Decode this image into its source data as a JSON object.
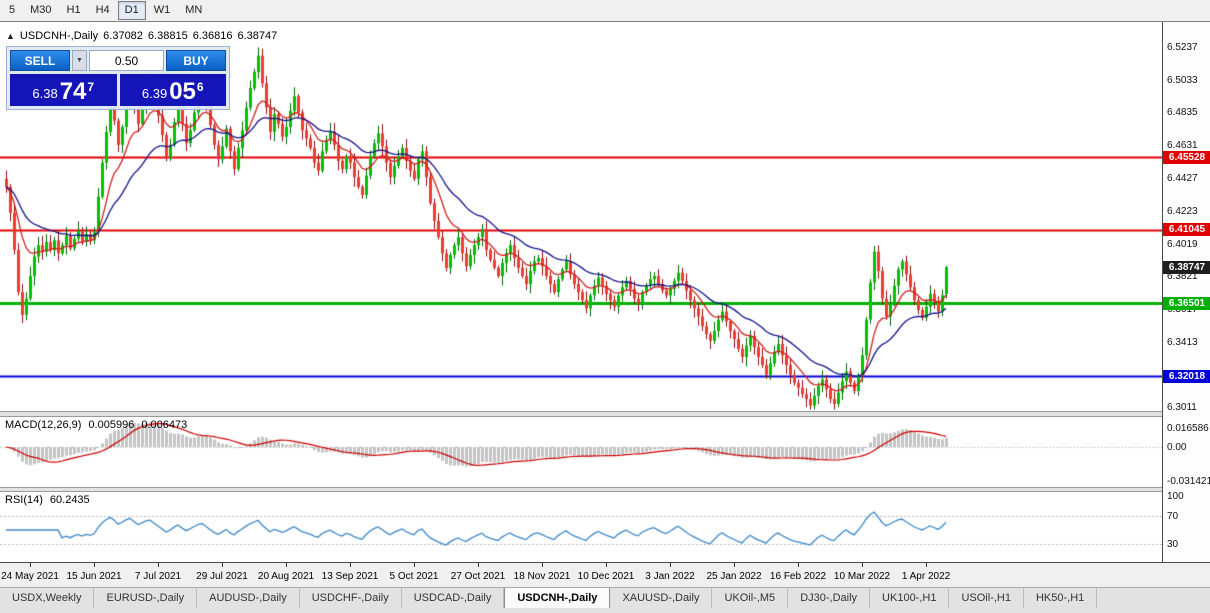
{
  "toolbar": {
    "timeframes": [
      {
        "label": "5",
        "active": false
      },
      {
        "label": "M30",
        "active": false
      },
      {
        "label": "H1",
        "active": false
      },
      {
        "label": "H4",
        "active": false
      },
      {
        "label": "D1",
        "active": true
      },
      {
        "label": "W1",
        "active": false
      },
      {
        "label": "MN",
        "active": false
      }
    ]
  },
  "chart_header": {
    "collapse_icon": "▲",
    "symbol": "USDCNH-,Daily",
    "open": "6.37082",
    "high": "6.38815",
    "low": "6.36816",
    "close": "6.38747"
  },
  "trade_panel": {
    "sell_label": "SELL",
    "buy_label": "BUY",
    "lot": "0.50",
    "dropdown_icon": "▼",
    "bid": {
      "main": "6.38",
      "pips": "74",
      "point": "7"
    },
    "ask": {
      "main": "6.39",
      "pips": "05",
      "point": "6"
    }
  },
  "indicators": {
    "macd": {
      "name": "MACD(12,26,9)",
      "value_main": "0.005996",
      "value_signal": "0.006473"
    },
    "rsi": {
      "name": "RSI(14)",
      "value": "60.2435"
    }
  },
  "colors": {
    "candle_up": "#00c000",
    "candle_up_wick": "#006600",
    "candle_down": "#ef3b32",
    "candle_down_wick": "#8f0e08",
    "ma_fast": "#d02020",
    "ma_slow": "#14148c",
    "macd_hist": "#c4c4c4",
    "macd_signal": "#cc0000",
    "rsi_line": "#3b87c8",
    "trade_button_blue": "#0a5fc4",
    "price_box_blue": "#1414b8"
  },
  "chart_data": {
    "type": "candlestick",
    "symbol": "USDCNH",
    "timeframe": "Daily",
    "ohlc_current": {
      "open": 6.37082,
      "high": 6.38815,
      "low": 6.36816,
      "close": 6.38747
    },
    "bid": 6.38747,
    "ask": 6.39056,
    "y_scale_top": 6.537,
    "y_scale_bottom": 6.2986,
    "y_axis_ticks": [
      "6.5237",
      "6.5033",
      "6.4835",
      "6.4631",
      "6.4427",
      "6.4223",
      "6.4019",
      "6.3821",
      "6.3617",
      "6.3413",
      "6.3209",
      "6.3011"
    ],
    "levels": [
      {
        "price": 6.45528,
        "label": "6.45528",
        "color": "#e00000",
        "line_width": 2,
        "current": false
      },
      {
        "price": 6.41045,
        "label": "6.41045",
        "color": "#e00000",
        "line_width": 2,
        "current": false
      },
      {
        "price": 6.38747,
        "label": "6.38747",
        "color": "#1e1e1e",
        "line_width": 0,
        "current": true
      },
      {
        "price": 6.36501,
        "label": "6.36501",
        "color": "#00b000",
        "line_width": 3,
        "current": false
      },
      {
        "price": 6.32018,
        "label": "6.32018",
        "color": "#0000d8",
        "line_width": 2,
        "current": false
      }
    ],
    "x_tick_labels": [
      "24 May 2021",
      "15 Jun 2021",
      "7 Jul 2021",
      "29 Jul 2021",
      "20 Aug 2021",
      "13 Sep 2021",
      "5 Oct 2021",
      "27 Oct 2021",
      "18 Nov 2021",
      "10 Dec 2021",
      "3 Jan 2022",
      "25 Jan 2022",
      "16 Feb 2022",
      "10 Mar 2022",
      "1 Apr 2022"
    ],
    "x_tick_bars": [
      6,
      22,
      38,
      54,
      70,
      86,
      102,
      118,
      134,
      150,
      166,
      182,
      198,
      214,
      230
    ],
    "macd_axis": [
      "0.016586",
      "0.00",
      "-0.031421"
    ],
    "rsi_axis": [
      "100",
      "70",
      "30"
    ],
    "rsi_levels": [
      70,
      30
    ],
    "first_open": 6.442,
    "closes": [
      6.437,
      6.421,
      6.398,
      6.372,
      6.358,
      6.368,
      6.382,
      6.394,
      6.401,
      6.397,
      6.403,
      6.398,
      6.404,
      6.396,
      6.401,
      6.407,
      6.399,
      6.405,
      6.41,
      6.403,
      6.408,
      6.404,
      6.409,
      6.431,
      6.452,
      6.471,
      6.487,
      6.478,
      6.463,
      6.474,
      6.489,
      6.499,
      6.487,
      6.476,
      6.486,
      6.497,
      6.502,
      6.491,
      6.481,
      6.469,
      6.455,
      6.463,
      6.477,
      6.488,
      6.476,
      6.464,
      6.472,
      6.483,
      6.493,
      6.498,
      6.487,
      6.475,
      6.463,
      6.454,
      6.462,
      6.473,
      6.459,
      6.448,
      6.461,
      6.472,
      6.486,
      6.498,
      6.508,
      6.518,
      6.501,
      6.486,
      6.471,
      6.482,
      6.476,
      6.468,
      6.474,
      6.484,
      6.493,
      6.483,
      6.472,
      6.467,
      6.461,
      6.452,
      6.447,
      6.459,
      6.466,
      6.471,
      6.463,
      6.453,
      6.448,
      6.456,
      6.452,
      6.443,
      6.437,
      6.432,
      6.444,
      6.456,
      6.464,
      6.47,
      6.462,
      6.452,
      6.443,
      6.45,
      6.456,
      6.461,
      6.453,
      6.447,
      6.442,
      6.454,
      6.459,
      6.443,
      6.427,
      6.416,
      6.406,
      6.396,
      6.387,
      6.395,
      6.401,
      6.406,
      6.396,
      6.388,
      6.395,
      6.401,
      6.406,
      6.411,
      6.398,
      6.392,
      6.387,
      6.382,
      6.39,
      6.396,
      6.401,
      6.393,
      6.387,
      6.382,
      6.377,
      6.385,
      6.391,
      6.393,
      6.388,
      6.382,
      6.377,
      6.372,
      6.38,
      6.386,
      6.391,
      6.383,
      6.377,
      6.372,
      6.367,
      6.362,
      6.37,
      6.376,
      6.381,
      6.376,
      6.371,
      6.367,
      6.363,
      6.37,
      6.375,
      6.379,
      6.374,
      6.368,
      6.365,
      6.372,
      6.376,
      6.38,
      6.382,
      6.377,
      6.373,
      6.37,
      6.374,
      6.379,
      6.384,
      6.379,
      6.373,
      6.367,
      6.362,
      6.357,
      6.351,
      6.346,
      6.342,
      6.348,
      6.355,
      6.36,
      6.354,
      6.348,
      6.343,
      6.337,
      6.332,
      6.339,
      6.345,
      6.338,
      6.332,
      6.327,
      6.321,
      6.328,
      6.335,
      6.34,
      6.333,
      6.327,
      6.321,
      6.316,
      6.313,
      6.309,
      6.306,
      6.302,
      6.308,
      6.314,
      6.318,
      6.312,
      6.306,
      6.303,
      6.31,
      6.317,
      6.323,
      6.316,
      6.311,
      6.32,
      6.333,
      6.355,
      6.378,
      6.397,
      6.385,
      6.368,
      6.357,
      6.365,
      6.376,
      6.386,
      6.391,
      6.383,
      6.375,
      6.367,
      6.361,
      6.356,
      6.363,
      6.371,
      6.366,
      6.36,
      6.37,
      6.38747
    ]
  },
  "tabs": [
    {
      "label": "USDX,Weekly",
      "active": false
    },
    {
      "label": "EURUSD-,Daily",
      "active": false
    },
    {
      "label": "AUDUSD-,Daily",
      "active": false
    },
    {
      "label": "USDCHF-,Daily",
      "active": false
    },
    {
      "label": "USDCAD-,Daily",
      "active": false
    },
    {
      "label": "USDCNH-,Daily",
      "active": true
    },
    {
      "label": "XAUUSD-,Daily",
      "active": false
    },
    {
      "label": "UKOil-,M5",
      "active": false
    },
    {
      "label": "DJ30-,Daily",
      "active": false
    },
    {
      "label": "UK100-,H1",
      "active": false
    },
    {
      "label": "USOil-,H1",
      "active": false
    },
    {
      "label": "HK50-,H1",
      "active": false
    }
  ]
}
